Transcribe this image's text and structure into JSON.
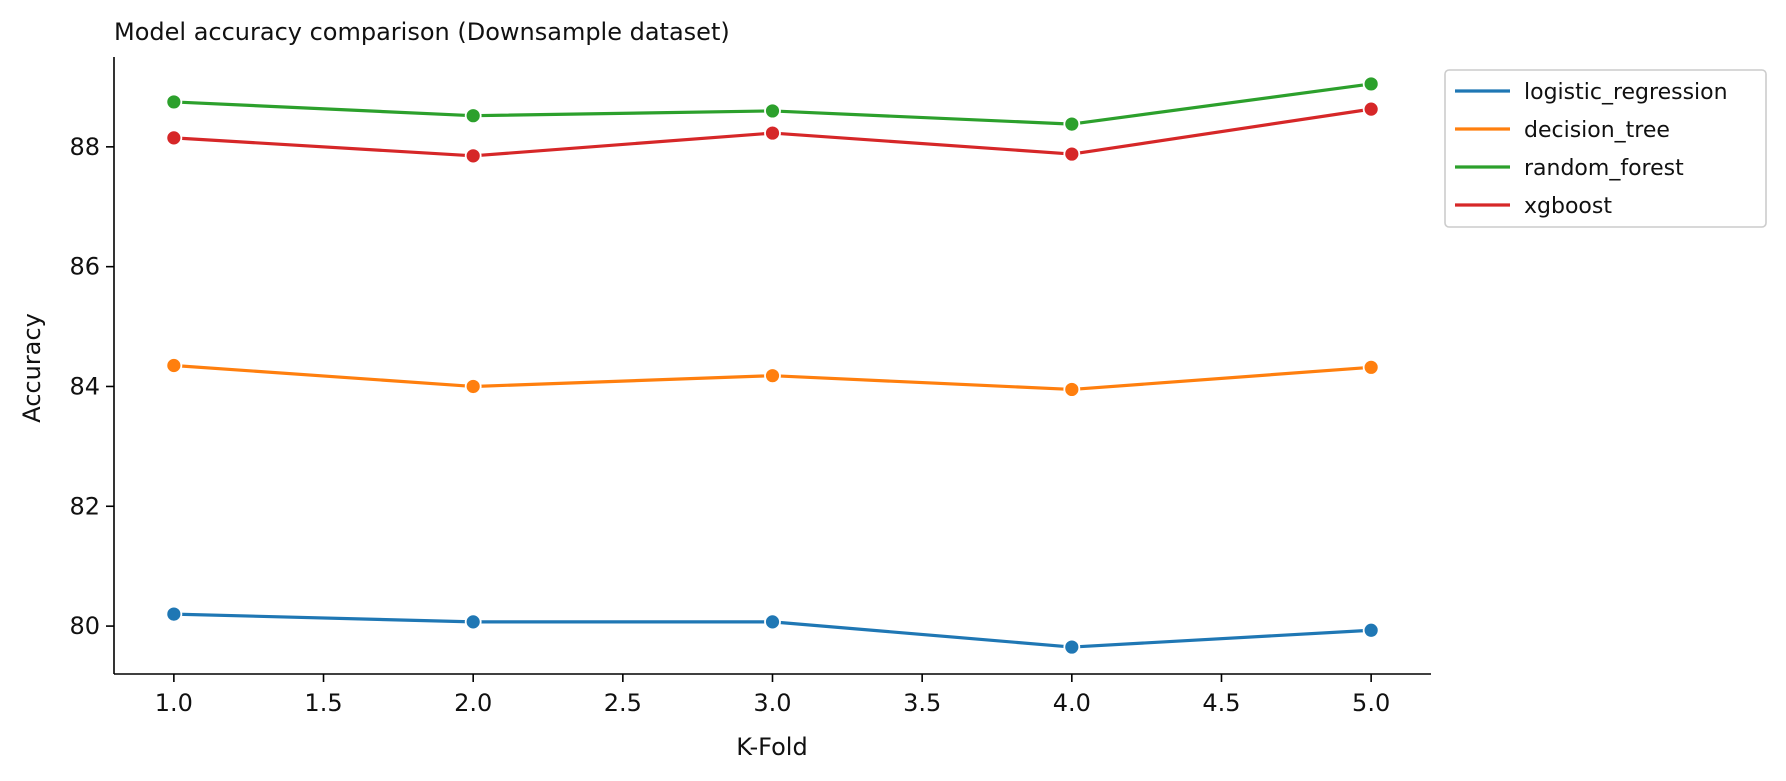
{
  "chart_data": {
    "type": "line",
    "title": "Model accuracy comparison (Downsample dataset)",
    "xlabel": "K-Fold",
    "ylabel": "Accuracy",
    "x": [
      1,
      2,
      3,
      4,
      5
    ],
    "xlim": [
      0.8,
      5.2
    ],
    "ylim": [
      79.2,
      89.5
    ],
    "xticks": [
      1.0,
      1.5,
      2.0,
      2.5,
      3.0,
      3.5,
      4.0,
      4.5,
      5.0
    ],
    "xtick_labels": [
      "1.0",
      "1.5",
      "2.0",
      "2.5",
      "3.0",
      "3.5",
      "4.0",
      "4.5",
      "5.0"
    ],
    "yticks": [
      80,
      82,
      84,
      86,
      88
    ],
    "ytick_labels": [
      "80",
      "82",
      "84",
      "86",
      "88"
    ],
    "grid": false,
    "legend_position": "outside-top-right",
    "series": [
      {
        "name": "logistic_regression",
        "color": "#1f77b4",
        "values": [
          80.2,
          80.07,
          80.07,
          79.65,
          79.93
        ]
      },
      {
        "name": "decision_tree",
        "color": "#ff7f0e",
        "values": [
          84.35,
          84.0,
          84.18,
          83.95,
          84.32
        ]
      },
      {
        "name": "random_forest",
        "color": "#2ca02c",
        "values": [
          88.75,
          88.52,
          88.6,
          88.38,
          89.05
        ]
      },
      {
        "name": "xgboost",
        "color": "#d62728",
        "values": [
          88.15,
          87.85,
          88.23,
          87.88,
          88.63
        ]
      }
    ]
  }
}
